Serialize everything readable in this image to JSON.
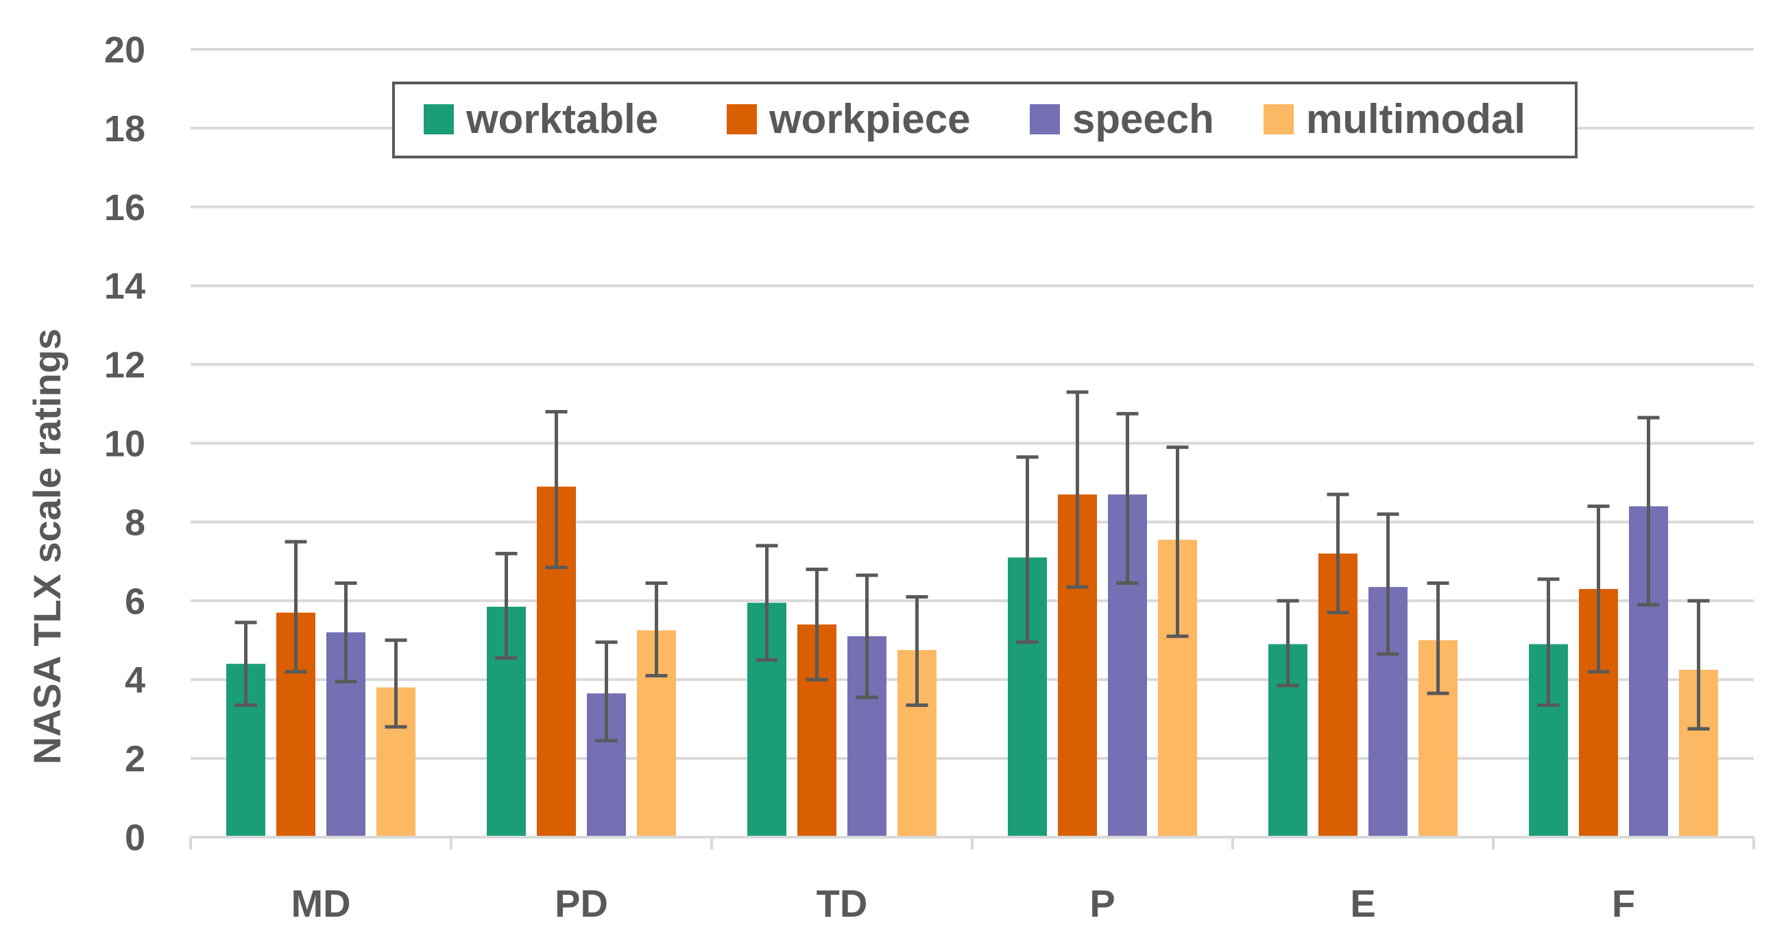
{
  "chart_data": {
    "type": "bar",
    "title": "",
    "xlabel": "",
    "ylabel": "NASA TLX scale ratings",
    "ylim": [
      0,
      20
    ],
    "yticks": [
      0,
      2,
      4,
      6,
      8,
      10,
      12,
      14,
      16,
      18,
      20
    ],
    "grid": true,
    "legend_position": "top-center",
    "categories": [
      "MD",
      "PD",
      "TD",
      "P",
      "E",
      "F"
    ],
    "series": [
      {
        "name": "worktable",
        "color": "#1b9e77",
        "values": [
          4.4,
          5.85,
          5.95,
          7.1,
          4.9,
          4.9
        ],
        "error_low": [
          3.35,
          4.55,
          4.5,
          4.95,
          3.85,
          3.35
        ],
        "error_high": [
          5.45,
          7.2,
          7.4,
          9.65,
          6.0,
          6.55
        ]
      },
      {
        "name": "workpiece",
        "color": "#d95f02",
        "values": [
          5.7,
          8.9,
          5.4,
          8.7,
          7.2,
          6.3
        ],
        "error_low": [
          4.2,
          6.85,
          4.0,
          6.35,
          5.7,
          4.2
        ],
        "error_high": [
          7.5,
          10.8,
          6.8,
          11.3,
          8.7,
          8.4
        ]
      },
      {
        "name": "speech",
        "color": "#7570b3",
        "values": [
          5.2,
          3.65,
          5.1,
          8.7,
          6.35,
          8.4
        ],
        "error_low": [
          3.95,
          2.45,
          3.55,
          6.45,
          4.65,
          5.9
        ],
        "error_high": [
          6.45,
          4.95,
          6.65,
          10.75,
          8.2,
          10.65
        ]
      },
      {
        "name": "multimodal",
        "color": "#fdb863",
        "values": [
          3.8,
          5.25,
          4.75,
          7.55,
          5.0,
          4.25
        ],
        "error_low": [
          2.8,
          4.1,
          3.35,
          5.1,
          3.65,
          2.75
        ],
        "error_high": [
          5.0,
          6.45,
          6.1,
          9.9,
          6.45,
          6.0
        ]
      }
    ]
  }
}
